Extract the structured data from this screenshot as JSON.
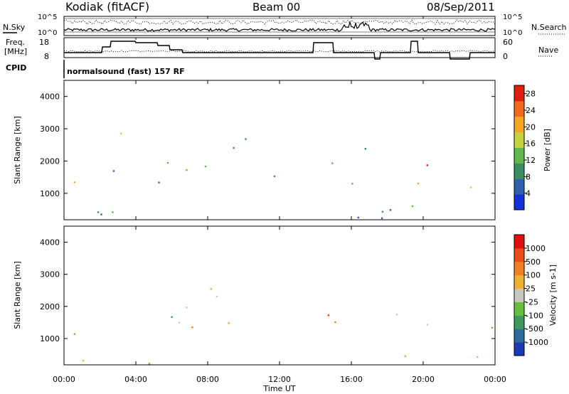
{
  "header": {
    "station": "Kodiak (fitACF)",
    "beam": "Beam 00",
    "date": "08/Sep/2011"
  },
  "noise_panel": {
    "left_label": "N.Sky",
    "right_label": "N.Search",
    "left_ticks": [
      "10^5",
      "10^0"
    ],
    "right_ticks": [
      "10^5",
      "10^0"
    ]
  },
  "freq_panel": {
    "left_label_line1": "Freq.",
    "left_label_line2": "[MHz]",
    "left_ticks": [
      "18",
      "8"
    ],
    "right_label": "Nave",
    "right_ticks": [
      "60",
      "0"
    ]
  },
  "cpid": {
    "label": "CPID",
    "text": "normalsound (fast) 157 RF"
  },
  "time_axis": {
    "label": "Time UT",
    "ticks": [
      "00:00",
      "04:00",
      "08:00",
      "12:00",
      "16:00",
      "20:00",
      "00:00"
    ]
  },
  "chart_data": [
    {
      "type": "heatmap",
      "title": "Power",
      "xlabel": "Time UT",
      "ylabel": "Slant Range [km]",
      "xlim": [
        0,
        24
      ],
      "ylim": [
        180,
        4500
      ],
      "yticks": [
        "1000",
        "2000",
        "3000",
        "4000"
      ],
      "colorbar": {
        "label": "Power [dB]",
        "ticks": [
          "4",
          "8",
          "12",
          "16",
          "20",
          "24",
          "28"
        ],
        "range": [
          0,
          30
        ],
        "colors": [
          "#1430dc",
          "#2e5fb0",
          "#3e8f60",
          "#62b84a",
          "#c8d23c",
          "#f5a623",
          "#f06a1a",
          "#e01e10"
        ]
      }
    },
    {
      "type": "heatmap",
      "title": "Velocity",
      "xlabel": "Time UT",
      "ylabel": "Slant Range [km]",
      "xlim": [
        0,
        24
      ],
      "ylim": [
        180,
        4500
      ],
      "yticks": [
        "1000",
        "2000",
        "3000",
        "4000"
      ],
      "colorbar": {
        "label": "Velocity [m s-1]",
        "ticks": [
          "1000",
          "500",
          "100",
          "25",
          "-25",
          "-100",
          "-500",
          "-1000"
        ],
        "colors": [
          "#1a3ab8",
          "#2d6a9e",
          "#3f9a5e",
          "#66c03c",
          "#c8c8c0",
          "#f0b030",
          "#f08020",
          "#ec4c18",
          "#e01010"
        ]
      }
    }
  ]
}
